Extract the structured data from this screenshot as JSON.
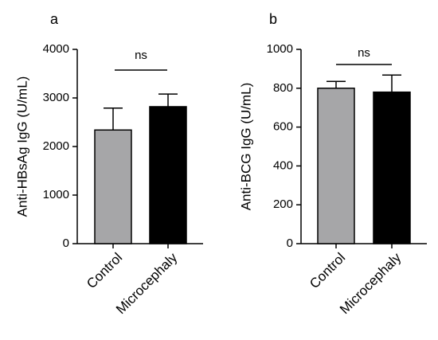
{
  "chart_data": [
    {
      "type": "bar",
      "panel_label": "a",
      "categories": [
        "Control",
        "Microcephaly"
      ],
      "values": [
        2340,
        2820
      ],
      "error_upper": [
        2790,
        3080
      ],
      "bar_colors": [
        "#a6a6a8",
        "#000000"
      ],
      "ylabel": "Anti-HBsAg IgG (U/mL)",
      "ylim": [
        0,
        4000
      ],
      "yticks": [
        0,
        1000,
        2000,
        3000,
        4000
      ],
      "ytick_labels": [
        "0",
        "1000",
        "2000",
        "3000",
        "4000"
      ],
      "significance": "ns",
      "grid": false
    },
    {
      "type": "bar",
      "panel_label": "b",
      "categories": [
        "Control",
        "Microcephaly"
      ],
      "values": [
        800,
        780
      ],
      "error_upper": [
        835,
        868
      ],
      "bar_colors": [
        "#a6a6a8",
        "#000000"
      ],
      "ylabel": "Anti-BCG IgG (U/mL)",
      "ylim": [
        0,
        1000
      ],
      "yticks": [
        0,
        200,
        400,
        600,
        800,
        1000
      ],
      "ytick_labels": [
        "0",
        "200",
        "400",
        "600",
        "800",
        "1000"
      ],
      "significance": "ns",
      "grid": false
    }
  ]
}
